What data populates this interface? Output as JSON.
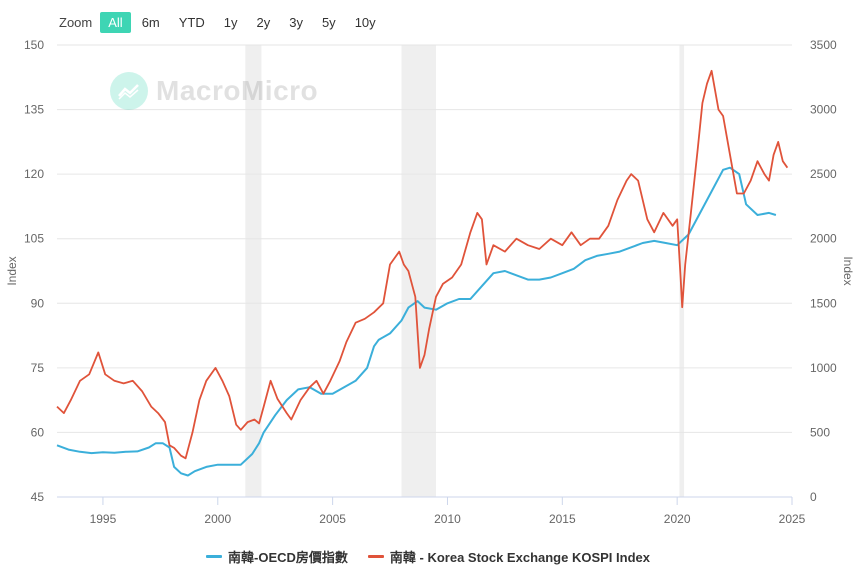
{
  "zoom": {
    "label": "Zoom",
    "options": [
      "All",
      "6m",
      "YTD",
      "1y",
      "2y",
      "3y",
      "5y",
      "10y"
    ],
    "active": "All"
  },
  "watermark": "MacroMicro",
  "colors": {
    "housing": "#3bafda",
    "kospi": "#e0533a",
    "grid": "#e6e6e6",
    "recession": "#efefef",
    "accent": "#3ed5b4"
  },
  "chart_data": {
    "type": "line",
    "title": "",
    "xlabel": "",
    "x_ticks": [
      "1995",
      "2000",
      "2005",
      "2010",
      "2015",
      "2020",
      "2025"
    ],
    "xlim": [
      1993.0,
      2025.0
    ],
    "y_left": {
      "label": "Index",
      "lim": [
        45,
        150
      ],
      "ticks": [
        45,
        60,
        75,
        90,
        105,
        120,
        135,
        150
      ]
    },
    "y_right": {
      "label": "Index",
      "lim": [
        0,
        3500
      ],
      "ticks": [
        0,
        500,
        1000,
        1500,
        2000,
        2500,
        3000,
        3500
      ]
    },
    "recession_bands": [
      [
        2001.2,
        2001.9
      ],
      [
        2008.0,
        2009.5
      ],
      [
        2020.1,
        2020.3
      ]
    ],
    "legend": [
      "南韓-OECD房價指數",
      "南韓 - Korea Stock Exchange KOSPI Index"
    ],
    "series": [
      {
        "name": "南韓-OECD房價指數",
        "axis": "left",
        "x": [
          1993.0,
          1993.5,
          1994.0,
          1994.5,
          1995.0,
          1995.5,
          1996.0,
          1996.5,
          1997.0,
          1997.3,
          1997.6,
          1997.9,
          1998.1,
          1998.4,
          1998.7,
          1999.0,
          1999.5,
          2000.0,
          2000.5,
          2001.0,
          2001.5,
          2001.8,
          2002.0,
          2002.5,
          2003.0,
          2003.5,
          2004.0,
          2004.5,
          2005.0,
          2005.5,
          2006.0,
          2006.5,
          2006.8,
          2007.0,
          2007.5,
          2008.0,
          2008.3,
          2008.7,
          2009.0,
          2009.5,
          2010.0,
          2010.5,
          2011.0,
          2011.5,
          2012.0,
          2012.5,
          2013.0,
          2013.5,
          2014.0,
          2014.5,
          2015.0,
          2015.5,
          2016.0,
          2016.5,
          2017.0,
          2017.5,
          2018.0,
          2018.5,
          2019.0,
          2019.5,
          2020.0,
          2020.5,
          2021.0,
          2021.5,
          2022.0,
          2022.3,
          2022.7,
          2023.0,
          2023.5,
          2024.0,
          2024.3
        ],
        "values": [
          57,
          56,
          55.5,
          55.2,
          55.4,
          55.3,
          55.5,
          55.6,
          56.5,
          57.5,
          57.5,
          56.5,
          52,
          50.5,
          50,
          51,
          52,
          52.5,
          52.5,
          52.5,
          55,
          57.5,
          60,
          64,
          67.5,
          70,
          70.5,
          69,
          69,
          70.5,
          72,
          75,
          80,
          81.5,
          83,
          86,
          89,
          90.5,
          89,
          88.5,
          90,
          91,
          91,
          94,
          97,
          97.5,
          96.5,
          95.5,
          95.5,
          96,
          97,
          98,
          100,
          101,
          101.5,
          102,
          103,
          104,
          104.5,
          104,
          103.5,
          106,
          111,
          116,
          121,
          121.5,
          120,
          113,
          110.5,
          111,
          110.5
        ]
      },
      {
        "name": "南韓 - Korea Stock Exchange KOSPI Index",
        "axis": "right",
        "x": [
          1993.0,
          1993.3,
          1993.6,
          1994.0,
          1994.4,
          1994.8,
          1995.1,
          1995.5,
          1995.9,
          1996.3,
          1996.7,
          1997.1,
          1997.4,
          1997.7,
          1997.9,
          1998.1,
          1998.4,
          1998.6,
          1998.9,
          1999.2,
          1999.5,
          1999.9,
          2000.2,
          2000.5,
          2000.8,
          2001.0,
          2001.3,
          2001.6,
          2001.8,
          2002.0,
          2002.3,
          2002.6,
          2003.0,
          2003.2,
          2003.6,
          2004.0,
          2004.3,
          2004.6,
          2004.9,
          2005.3,
          2005.6,
          2006.0,
          2006.4,
          2006.8,
          2007.2,
          2007.5,
          2007.9,
          2008.1,
          2008.3,
          2008.6,
          2008.8,
          2009.0,
          2009.2,
          2009.5,
          2009.8,
          2010.2,
          2010.6,
          2011.0,
          2011.3,
          2011.5,
          2011.7,
          2012.0,
          2012.5,
          2013.0,
          2013.5,
          2014.0,
          2014.5,
          2015.0,
          2015.4,
          2015.8,
          2016.2,
          2016.6,
          2017.0,
          2017.4,
          2017.8,
          2018.0,
          2018.3,
          2018.7,
          2019.0,
          2019.4,
          2019.8,
          2020.0,
          2020.15,
          2020.22,
          2020.35,
          2020.6,
          2020.9,
          2021.1,
          2021.3,
          2021.5,
          2021.8,
          2022.0,
          2022.3,
          2022.6,
          2022.9,
          2023.2,
          2023.5,
          2023.8,
          2024.0,
          2024.2,
          2024.4,
          2024.6,
          2024.8
        ],
        "values": [
          700,
          650,
          750,
          900,
          950,
          1120,
          950,
          900,
          880,
          900,
          820,
          700,
          650,
          580,
          400,
          380,
          320,
          300,
          500,
          750,
          900,
          1000,
          900,
          780,
          560,
          520,
          580,
          600,
          570,
          700,
          900,
          760,
          650,
          600,
          750,
          850,
          900,
          800,
          900,
          1050,
          1200,
          1350,
          1380,
          1430,
          1500,
          1800,
          1900,
          1800,
          1750,
          1550,
          1000,
          1100,
          1300,
          1550,
          1650,
          1700,
          1800,
          2050,
          2200,
          2150,
          1800,
          1950,
          1900,
          2000,
          1950,
          1920,
          2000,
          1950,
          2050,
          1950,
          2000,
          2000,
          2100,
          2300,
          2450,
          2500,
          2450,
          2150,
          2050,
          2200,
          2100,
          2150,
          1700,
          1470,
          1800,
          2200,
          2700,
          3050,
          3200,
          3300,
          3000,
          2950,
          2650,
          2350,
          2350,
          2450,
          2600,
          2500,
          2450,
          2650,
          2750,
          2600,
          2550
        ]
      }
    ]
  }
}
